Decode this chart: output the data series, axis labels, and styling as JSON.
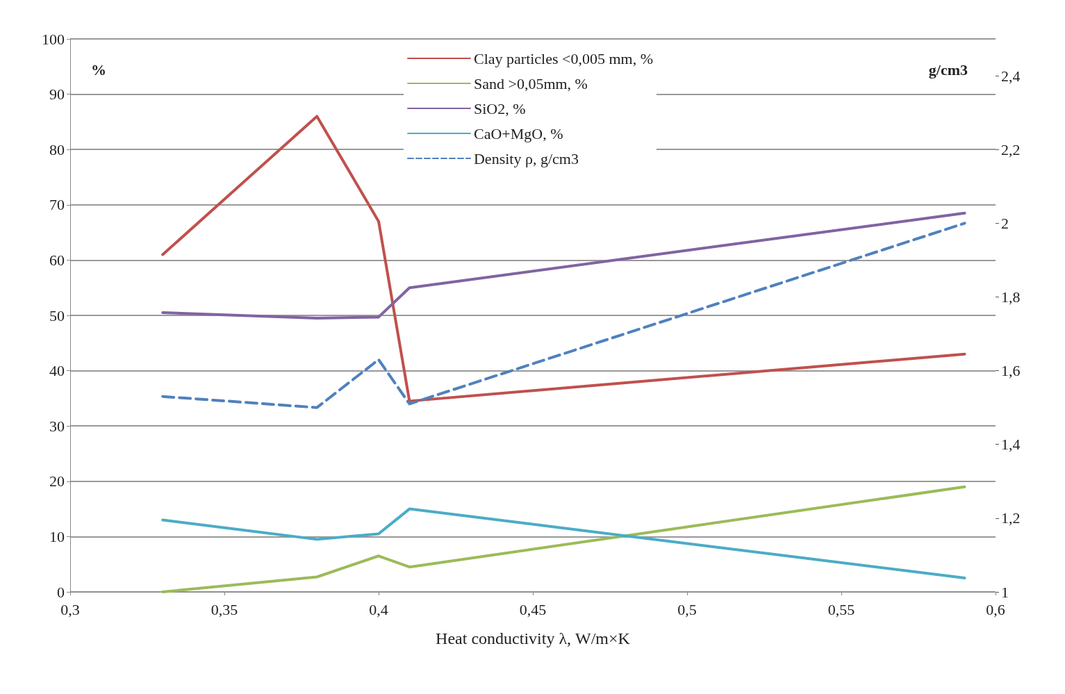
{
  "chart_data": {
    "type": "line",
    "xlabel": "Heat conductivity λ, W/m×K",
    "ylabel": "%",
    "y2label": "g/cm3",
    "xlim": [
      0.3,
      0.6
    ],
    "xticks": [
      {
        "value": 0.3,
        "label": "0,3"
      },
      {
        "value": 0.35,
        "label": "0,35"
      },
      {
        "value": 0.4,
        "label": "0,4"
      },
      {
        "value": 0.45,
        "label": "0,45"
      },
      {
        "value": 0.5,
        "label": "0,5"
      },
      {
        "value": 0.55,
        "label": "0,55"
      },
      {
        "value": 0.6,
        "label": "0,6"
      }
    ],
    "ylim": [
      0,
      100
    ],
    "yticks": [
      0,
      10,
      20,
      30,
      40,
      50,
      60,
      70,
      80,
      90,
      100
    ],
    "y2lim": [
      1,
      2.5
    ],
    "y2ticks": [
      1,
      {
        "value": 1.2,
        "label": "1,2"
      },
      {
        "value": 1.4,
        "label": "1,4"
      },
      {
        "value": 1.6,
        "label": "1,6"
      },
      {
        "value": 1.8,
        "label": "1,8"
      },
      2,
      {
        "value": 2.2,
        "label": "2,2"
      },
      {
        "value": 2.4,
        "label": "2,4"
      }
    ],
    "x": [
      0.33,
      0.38,
      0.4,
      0.41,
      0.59
    ],
    "grid": "y",
    "legend": "top",
    "marker": "none",
    "series": [
      {
        "name": "Clay particles <0,005 mm, %",
        "color": "#c0504d",
        "values": [
          61,
          86,
          67,
          34.5,
          43
        ]
      },
      {
        "name": "Sand >0,05mm, %",
        "color": "#9bbb59",
        "values": [
          0,
          2.7,
          6.5,
          4.5,
          19
        ]
      },
      {
        "name": "SiO2, %",
        "color": "#8064a2",
        "values": [
          50.5,
          49.5,
          49.7,
          55,
          68.5
        ]
      },
      {
        "name": "CaO+MgO, %",
        "color": "#4bacc6",
        "values": [
          13,
          9.5,
          10.5,
          15,
          2.5
        ]
      },
      {
        "name": "Density ρ, g/cm3",
        "color": "#4f81bd",
        "values": [
          1.53,
          1.5,
          1.63,
          1.51,
          2.0
        ],
        "axis": "y2",
        "line_style": "dashed"
      }
    ]
  }
}
